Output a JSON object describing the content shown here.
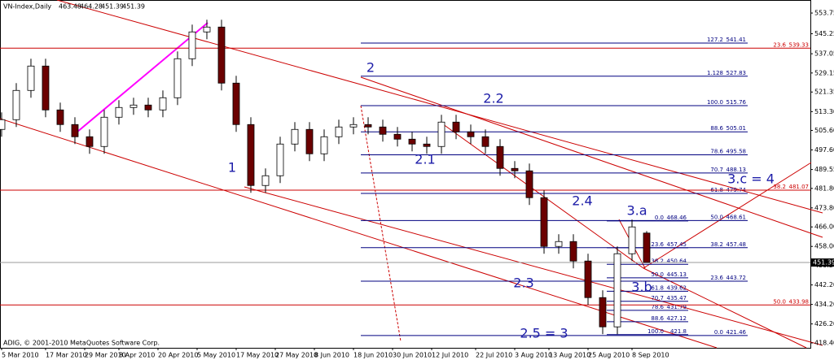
{
  "chart_data": {
    "type": "candlestick",
    "title": "VN-Index,Daily",
    "header_values": [
      463.48,
      464.28,
      451.39,
      451.39
    ],
    "copyright": "ADIG, © 2001-2010 MetaQuotes Software Corp.",
    "x": [
      0,
      3,
      6,
      9,
      12,
      15,
      18,
      21,
      24,
      27,
      30,
      33,
      36,
      39,
      42,
      45,
      48,
      51,
      54,
      57,
      60,
      63,
      66,
      69,
      72,
      75,
      78,
      81,
      84,
      87,
      90,
      93,
      96,
      99,
      102,
      105,
      108,
      111,
      114,
      117,
      120,
      123,
      126,
      129,
      132
    ],
    "open": [
      506,
      510,
      522,
      532,
      514,
      508,
      503,
      499,
      511,
      515,
      516,
      514,
      519,
      535,
      546,
      548,
      525,
      508,
      483,
      487,
      500,
      506,
      496,
      503,
      507,
      508,
      507,
      504,
      502,
      500,
      499,
      509,
      505,
      503,
      499,
      490,
      489,
      478,
      458,
      460,
      452,
      437,
      425,
      455,
      463.48
    ],
    "high": [
      513,
      525,
      535,
      535,
      517,
      511,
      506,
      514,
      518,
      519,
      519,
      522,
      538,
      549,
      551,
      551,
      528,
      511,
      490,
      503,
      509,
      509,
      506,
      510,
      511,
      511,
      510,
      507,
      505,
      503,
      512,
      512,
      508,
      506,
      502,
      493,
      492,
      481,
      463,
      463,
      455,
      440,
      458,
      469,
      464.28
    ],
    "low": [
      503,
      507,
      519,
      511,
      505,
      500,
      496,
      496,
      508,
      512,
      511,
      511,
      516,
      532,
      543,
      522,
      505,
      480,
      480,
      484,
      497,
      493,
      493,
      500,
      504,
      504,
      501,
      499,
      497,
      496,
      496,
      502,
      500,
      496,
      487,
      486,
      475,
      455,
      455,
      449,
      434,
      422,
      422,
      452,
      451.39
    ],
    "close": [
      510,
      522,
      532,
      514,
      508,
      503,
      499,
      511,
      515,
      516,
      514,
      519,
      535,
      546,
      548,
      525,
      508,
      483,
      487,
      500,
      506,
      496,
      503,
      507,
      508,
      507,
      504,
      502,
      500,
      499,
      509,
      505,
      503,
      499,
      490,
      489,
      478,
      458,
      460,
      452,
      437,
      425,
      455,
      466,
      451.39
    ],
    "up_color": "#ffffff",
    "down_color": "#6b0000",
    "xlim": [
      -0.33,
      165.5
    ],
    "xticks": [
      {
        "value": 0,
        "label": "5 Mar 2010"
      },
      {
        "value": 9,
        "label": "17 Mar 2010"
      },
      {
        "value": 17,
        "label": "29 Mar 2010"
      },
      {
        "value": 24,
        "label": "8 Apr 2010"
      },
      {
        "value": 32,
        "label": "20 Apr 2010"
      },
      {
        "value": 40,
        "label": "5 May 2010"
      },
      {
        "value": 48,
        "label": "17 May 2010"
      },
      {
        "value": 56,
        "label": "27 May 2010"
      },
      {
        "value": 64,
        "label": "8 Jun 2010"
      },
      {
        "value": 72,
        "label": "18 Jun 2010"
      },
      {
        "value": 80,
        "label": "30 Jun 2010"
      },
      {
        "value": 88,
        "label": "12 Jul 2010"
      },
      {
        "value": 97,
        "label": "22 Jul 2010"
      },
      {
        "value": 105,
        "label": "3 Aug 2010"
      },
      {
        "value": 112,
        "label": "13 Aug 2010"
      },
      {
        "value": 120,
        "label": "25 Aug 2010"
      },
      {
        "value": 129,
        "label": "8 Sep 2010"
      }
    ],
    "ylim": [
      416.4,
      559.1
    ],
    "yticks": [
      553.75,
      545.25,
      537.05,
      529.15,
      521.35,
      {
        "value": 513.3,
        "label": "513.30"
      },
      {
        "value": 505.6,
        "label": "505.60"
      },
      {
        "value": 497.6,
        "label": "497.60"
      },
      489.55,
      {
        "value": 481.8,
        "label": "481.80"
      },
      {
        "value": 473.8,
        "label": "473.80"
      },
      {
        "value": 466,
        "label": "466.00"
      },
      {
        "value": 458,
        "label": "458.00"
      },
      {
        "value": 450.2,
        "label": "450.20"
      },
      {
        "value": 442.2,
        "label": "442.20"
      },
      {
        "value": 434.2,
        "label": "434.20"
      },
      {
        "value": 426.2,
        "label": "426.20"
      },
      {
        "value": 418.4,
        "label": "418.40"
      }
    ],
    "current_price": 451.39,
    "fib_sets": [
      {
        "color": "#000080",
        "levels": [
          {
            "ratio": "127.2",
            "price": 541.41
          },
          {
            "ratio": "1.128",
            "price": 527.83
          },
          {
            "ratio": "100.0",
            "price": 515.76
          },
          {
            "ratio": "88.6",
            "price": 505.01
          },
          {
            "ratio": "78.6",
            "price": 495.58
          },
          {
            "ratio": "70.7",
            "price": 488.13
          },
          {
            "ratio": "61.8",
            "price": 479.74
          },
          {
            "ratio": "50.0",
            "price": 468.61
          },
          {
            "ratio": "38.2",
            "price": 457.48
          },
          {
            "ratio": "23.6",
            "price": 443.72
          },
          {
            "ratio": "0.0",
            "price": 421.46
          }
        ]
      },
      {
        "color": "#000080",
        "levels": [
          {
            "ratio": "0.0",
            "price": 468.46
          },
          {
            "ratio": "23.6",
            "price": 457.45
          },
          {
            "ratio": "38.2",
            "price": 450.64
          },
          {
            "ratio": "50.0",
            "price": 445.13
          },
          {
            "ratio": "61.8",
            "price": 439.62
          },
          {
            "ratio": "70.7",
            "price": 435.47
          },
          {
            "ratio": "78.6",
            "price": 431.79
          },
          {
            "ratio": "88.6",
            "price": 427.12
          },
          {
            "ratio": "100.0",
            "price": 421.8
          }
        ]
      },
      {
        "color": "#cc0000",
        "levels": [
          {
            "ratio": "23.6",
            "price": 539.33
          },
          {
            "ratio": "38.2",
            "price": 481.07
          },
          {
            "ratio": "50.0",
            "price": 433.98
          }
        ]
      }
    ],
    "annotations": [
      "1",
      "2",
      "2.1",
      "2.2",
      "2.3",
      "2.4",
      "2.5 = 3",
      "3.a",
      "3.b",
      "3.c = 4"
    ]
  }
}
